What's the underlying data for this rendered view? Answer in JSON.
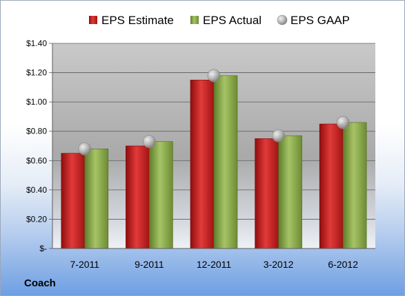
{
  "chart_data": {
    "type": "bar",
    "categories": [
      "7-2011",
      "9-2011",
      "12-2011",
      "3-2012",
      "6-2012"
    ],
    "series": [
      {
        "name": "EPS Estimate",
        "kind": "bar",
        "color": "#cc1f1f",
        "values": [
          0.65,
          0.7,
          1.15,
          0.75,
          0.85
        ]
      },
      {
        "name": "EPS Actual",
        "kind": "bar",
        "color": "#8fb04a",
        "values": [
          0.68,
          0.73,
          1.18,
          0.77,
          0.86
        ]
      },
      {
        "name": "EPS GAAP",
        "kind": "marker",
        "color": "#b8b8b8",
        "values": [
          0.68,
          0.73,
          1.18,
          0.77,
          0.86
        ]
      }
    ],
    "ylim": [
      0,
      1.4
    ],
    "yticks": [
      0,
      0.2,
      0.4,
      0.6,
      0.8,
      1.0,
      1.2,
      1.4
    ],
    "ytick_labels": [
      "$-",
      "$0.20",
      "$0.40",
      "$0.60",
      "$0.80",
      "$1.00",
      "$1.20",
      "$1.40"
    ],
    "grid": true,
    "legend": "top"
  },
  "footer": {
    "company": "Coach"
  }
}
